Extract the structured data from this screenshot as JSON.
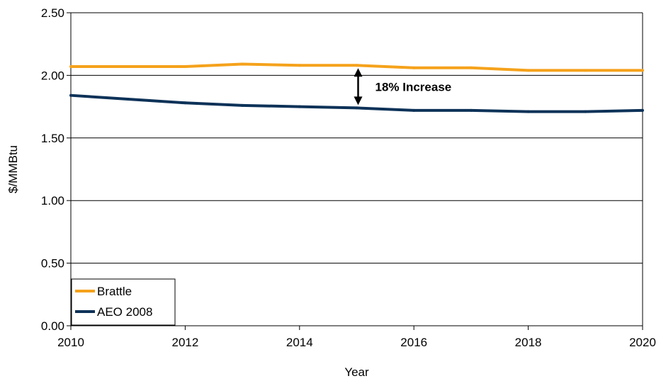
{
  "chart_data": {
    "type": "line",
    "title": "",
    "xlabel": "Year",
    "ylabel": "$/MMBtu",
    "xlim": [
      2010,
      2020
    ],
    "ylim": [
      0,
      2.5
    ],
    "xticks": [
      2010,
      2012,
      2014,
      2016,
      2018,
      2020
    ],
    "xtick_labels": [
      "2010",
      "2012",
      "2014",
      "2016",
      "2018",
      "2020"
    ],
    "yticks": [
      0,
      0.5,
      1.0,
      1.5,
      2.0,
      2.5
    ],
    "ytick_labels": [
      "0.00",
      "0.50",
      "1.00",
      "1.50",
      "2.00",
      "2.50"
    ],
    "grid": "horizontal",
    "legend_position": "bottom-left",
    "x": [
      2010,
      2011,
      2012,
      2013,
      2014,
      2015,
      2016,
      2017,
      2018,
      2019,
      2020
    ],
    "series": [
      {
        "name": "Brattle",
        "color": "#F5A21B",
        "values": [
          2.07,
          2.07,
          2.07,
          2.09,
          2.08,
          2.08,
          2.06,
          2.06,
          2.04,
          2.04,
          2.04
        ]
      },
      {
        "name": "AEO 2008",
        "color": "#0D3258",
        "values": [
          1.84,
          1.81,
          1.78,
          1.76,
          1.75,
          1.74,
          1.72,
          1.72,
          1.71,
          1.71,
          1.72
        ]
      }
    ],
    "annotations": [
      {
        "text": "18% Increase",
        "x": 2015,
        "y_from": 1.74,
        "y_to": 2.08
      }
    ]
  }
}
